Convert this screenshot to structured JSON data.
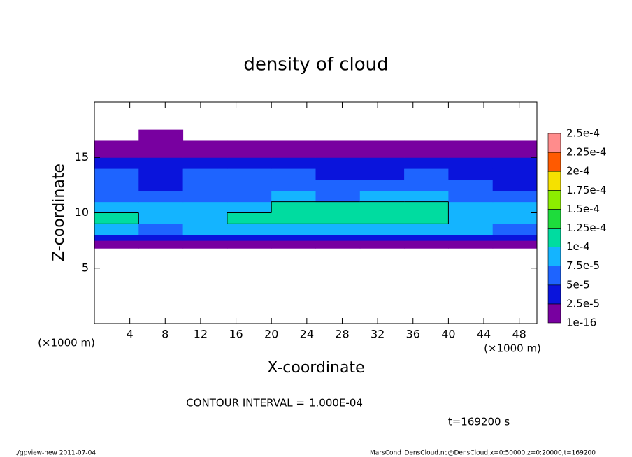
{
  "chart_data": {
    "type": "heatmap",
    "title": "density of cloud",
    "xlabel": "X-coordinate",
    "ylabel": "Z-coordinate",
    "x_unit_left": "(×1000 m)",
    "x_unit_right": "(×1000 m)",
    "xlim": [
      0,
      50
    ],
    "xticks": [
      4,
      8,
      12,
      16,
      20,
      24,
      28,
      32,
      36,
      40,
      44,
      48
    ],
    "ylim": [
      0,
      20
    ],
    "yticks": [
      5,
      10,
      15
    ],
    "grid_x_edges": [
      0,
      5,
      10,
      15,
      20,
      25,
      30,
      35,
      40,
      45,
      50
    ],
    "grid_z_edges": [
      6.8,
      7.5,
      8,
      9,
      10,
      11,
      12,
      13,
      14,
      15,
      15.5,
      16.5,
      17.5
    ],
    "grid_values": [
      [
        1.2e-05,
        1e-05,
        1.1e-05,
        1.3e-05,
        1.2e-05,
        1e-05,
        1.1e-05,
        1.2e-05,
        1e-05,
        1.3e-05
      ],
      [
        3.2e-05,
        2.8e-05,
        3.5e-05,
        3e-05,
        3.3e-05,
        2.9e-05,
        3.1e-05,
        3.4e-05,
        3e-05,
        2.7e-05
      ],
      [
        7.8e-05,
        7e-05,
        7.6e-05,
        8.2e-05,
        8e-05,
        7.7e-05,
        8.4e-05,
        8.1e-05,
        7.5e-05,
        7.2e-05
      ],
      [
        0.000102,
        9.4e-05,
        9.6e-05,
        0.000104,
        0.000108,
        0.000105,
        0.00011,
        0.000106,
        9.8e-05,
        9.2e-05
      ],
      [
        9e-05,
        8.2e-05,
        8.6e-05,
        9.5e-05,
        0.000106,
        0.000102,
        0.000112,
        0.000108,
        9.4e-05,
        9.8e-05
      ],
      [
        6.8e-05,
        5.6e-05,
        6.4e-05,
        7.2e-05,
        7.8e-05,
        7.4e-05,
        8e-05,
        7.6e-05,
        6.6e-05,
        6.2e-05
      ],
      [
        5.4e-05,
        4.2e-05,
        5e-05,
        5.6e-05,
        5.8e-05,
        6e-05,
        5.8e-05,
        5.5e-05,
        5e-05,
        4.6e-05
      ],
      [
        5e-05,
        4.8e-05,
        5.2e-05,
        5.4e-05,
        5e-05,
        4.6e-05,
        4.4e-05,
        5e-05,
        4.8e-05,
        4.4e-05
      ],
      [
        4.2e-05,
        4e-05,
        4.4e-05,
        4.2e-05,
        4e-05,
        3.8e-05,
        4e-05,
        4.2e-05,
        3.6e-05,
        3.8e-05
      ],
      [
        2.2e-05,
        2e-05,
        2.4e-05,
        2.1e-05,
        2e-05,
        1.9e-05,
        2.2e-05,
        2e-05,
        2.1e-05,
        2.3e-05
      ],
      [
        1e-05,
        1.1e-05,
        9e-06,
        1e-05,
        1.2e-05,
        1e-05,
        9e-06,
        1.1e-05,
        1e-05,
        1.2e-05
      ],
      [
        null,
        6e-06,
        null,
        null,
        null,
        null,
        null,
        null,
        null,
        null
      ]
    ],
    "levels": [
      {
        "value": 1e-16,
        "label": "1e-16"
      },
      {
        "value": 2.5e-05,
        "label": "2.5e-5"
      },
      {
        "value": 5e-05,
        "label": "5e-5"
      },
      {
        "value": 7.5e-05,
        "label": "7.5e-5"
      },
      {
        "value": 0.0001,
        "label": "1e-4"
      },
      {
        "value": 0.000125,
        "label": "1.25e-4"
      },
      {
        "value": 0.00015,
        "label": "1.5e-4"
      },
      {
        "value": 0.000175,
        "label": "1.75e-4"
      },
      {
        "value": 0.0002,
        "label": "2e-4"
      },
      {
        "value": 0.000225,
        "label": "2.25e-4"
      },
      {
        "value": 0.00025,
        "label": "2.5e-4"
      }
    ],
    "level_colors": [
      "#7800a0",
      "#0a14dc",
      "#1e64ff",
      "#14b4ff",
      "#00dca0",
      "#1edc3c",
      "#8ced00",
      "#f5e100",
      "#ff5a00",
      "#ff8c8c"
    ],
    "contour_label": "CONTOUR INTERVAL =",
    "contour_interval": {
      "value": 0.0001,
      "label": "1.000E-04"
    },
    "time_label": "t=169200 s",
    "footer_left": "./gpview-new  2011-07-04",
    "footer_right": "MarsCond_DensCloud.nc@DensCloud,x=0:50000,z=0:20000,t=169200"
  }
}
